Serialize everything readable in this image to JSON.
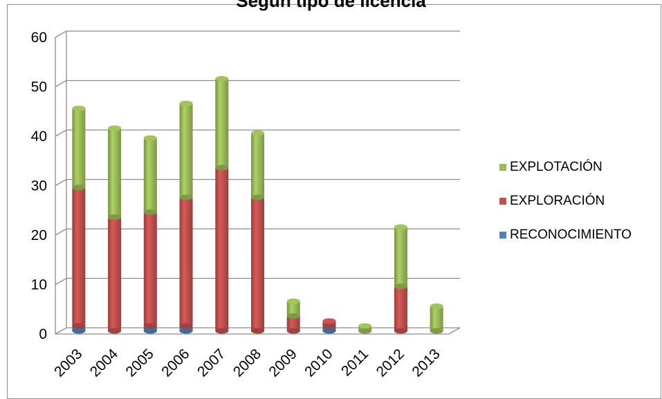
{
  "chart_data": {
    "type": "bar",
    "stacked": true,
    "title": "Según tipo de licencia",
    "categories": [
      "2003",
      "2004",
      "2005",
      "2006",
      "2007",
      "2008",
      "2009",
      "2010",
      "2011",
      "2012",
      "2013"
    ],
    "series": [
      {
        "name": "RECONOCIMIENTO",
        "color": "#4f81bd",
        "values": [
          1,
          0,
          1,
          1,
          0,
          0,
          0,
          1,
          0,
          0,
          0
        ]
      },
      {
        "name": "EXPLORACIÓN",
        "color": "#c0504d",
        "values": [
          28,
          23,
          23,
          26,
          33,
          27,
          3,
          1,
          0,
          9,
          0
        ]
      },
      {
        "name": "EXPLOTACIÓN",
        "color": "#9bbb59",
        "values": [
          16,
          18,
          15,
          19,
          18,
          13,
          3,
          0,
          1,
          12,
          5
        ]
      }
    ],
    "ylim": [
      0,
      60
    ],
    "yticks": [
      0,
      10,
      20,
      30,
      40,
      50,
      60
    ],
    "grid": true,
    "legend_position": "right"
  }
}
